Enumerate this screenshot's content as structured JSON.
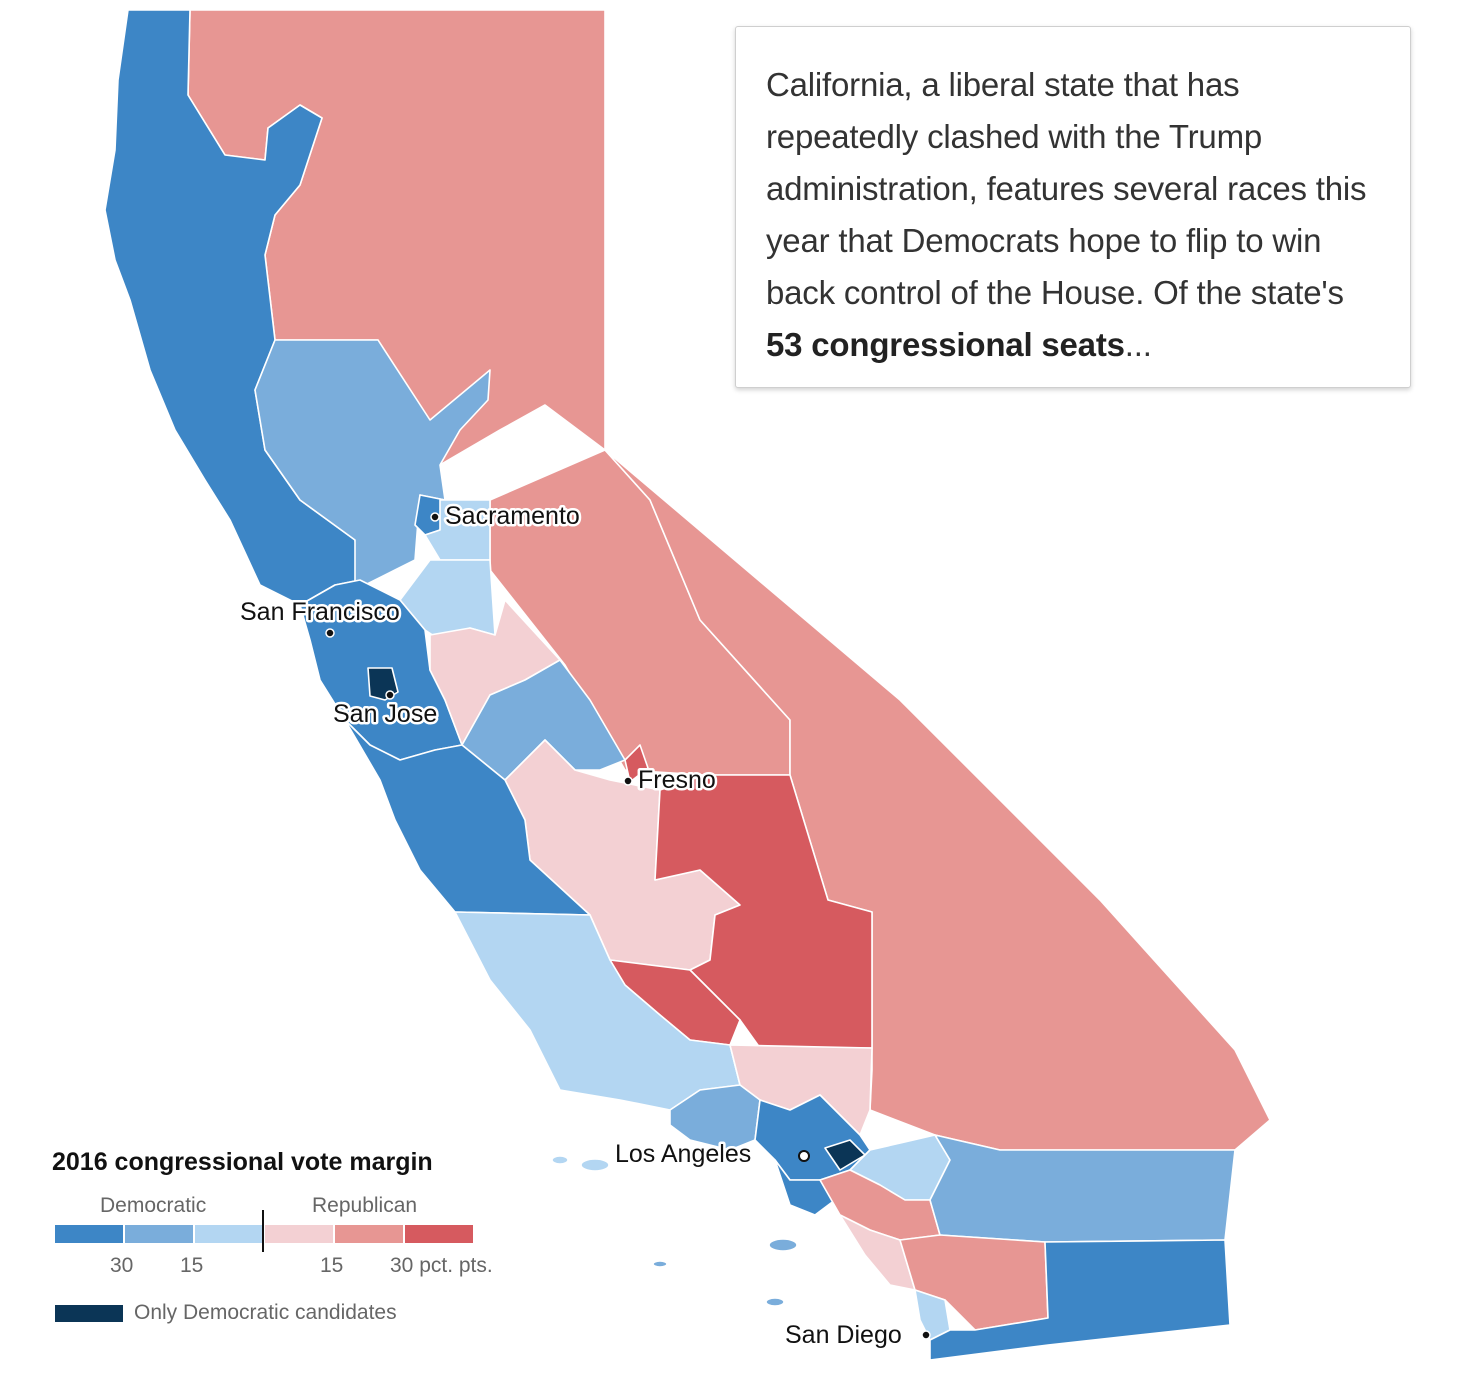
{
  "colors": {
    "dem_30_plus": "#3d86c6",
    "dem_15_30": "#7aaddb",
    "dem_0_15": "#b3d6f2",
    "rep_0_15": "#f3d0d3",
    "rep_15_30": "#e79693",
    "rep_30_plus": "#d65a5f",
    "only_dem": "#0b3556"
  },
  "intro": {
    "text_before": "California, a liberal state that has repeatedly clashed with the Trump administration, features several races this year that Democrats hope to flip to win back control of the House. Of the state's ",
    "text_bold": "53 congressional seats",
    "text_after": "..."
  },
  "cities": {
    "sacramento": "Sacramento",
    "san_francisco": "San Francisco",
    "san_jose": "San Jose",
    "fresno": "Fresno",
    "los_angeles": "Los Angeles",
    "san_diego": "San Diego"
  },
  "legend": {
    "title": "2016 congressional vote margin",
    "democratic_label": "Democratic",
    "republican_label": "Republican",
    "ticks": [
      "30",
      "15",
      "15",
      "30 pct. pts."
    ],
    "only_dem_label": "Only Democratic candidates"
  }
}
